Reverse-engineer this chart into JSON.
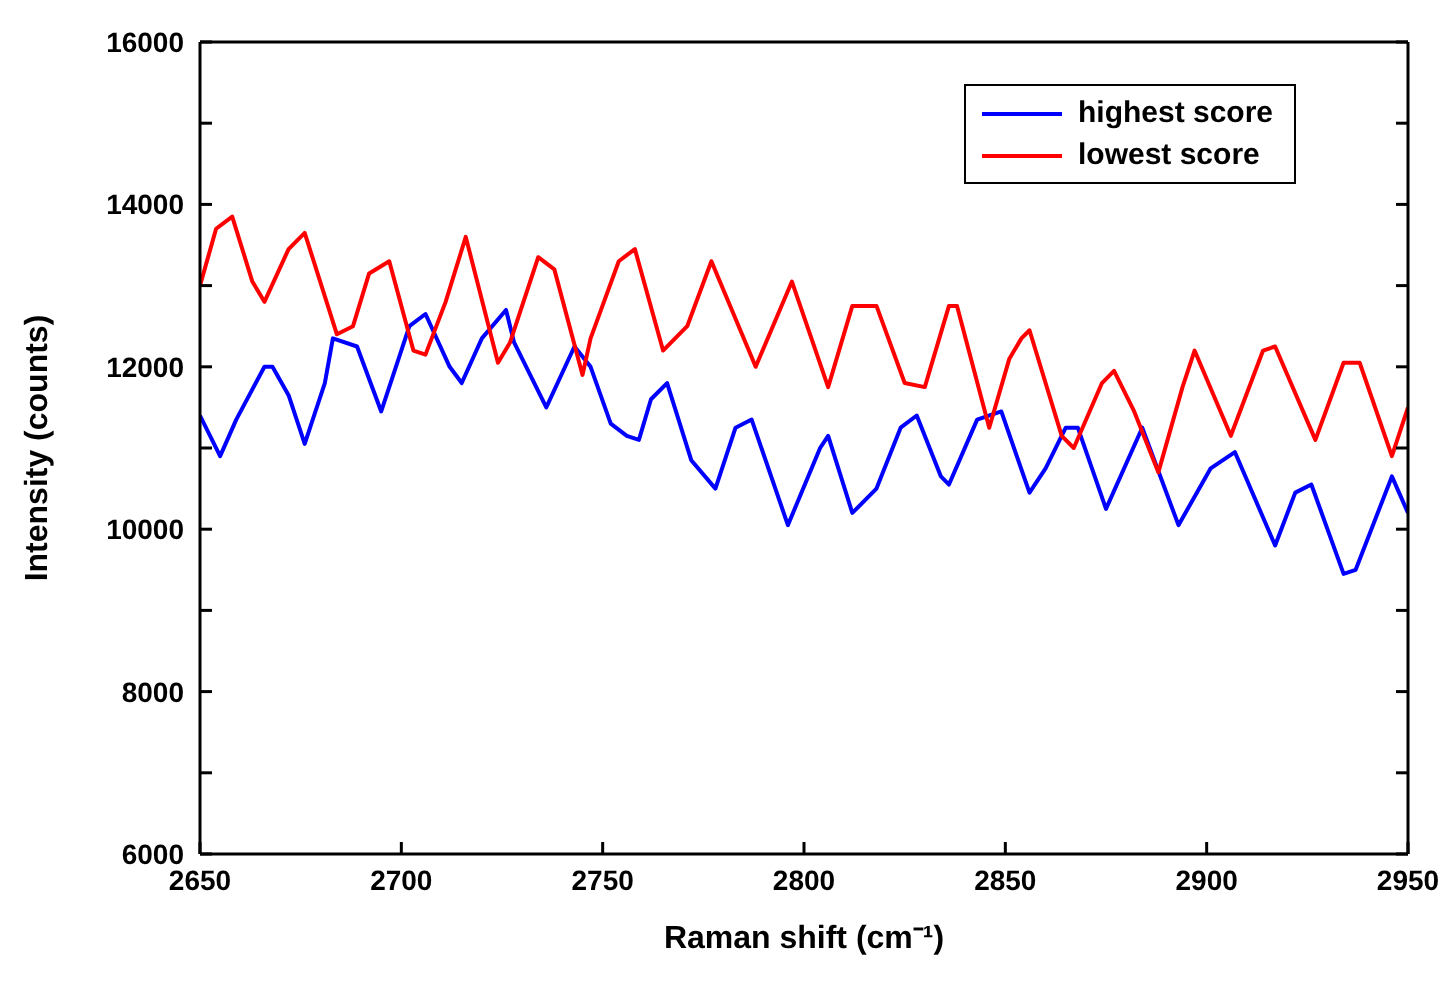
{
  "chart_data": {
    "type": "line",
    "xlabel": "Raman shift (cm⁻¹)",
    "ylabel": "Intensity (counts)",
    "xlim": [
      2650,
      2950
    ],
    "xticks": [
      2650,
      2700,
      2750,
      2800,
      2850,
      2900,
      2950
    ],
    "ylim": [
      6000,
      16000
    ],
    "yticks": [
      6000,
      {
        "value": 7000,
        "label": null
      },
      8000,
      {
        "value": 9000,
        "label": null
      },
      10000,
      {
        "value": 11000,
        "label": null
      },
      12000,
      {
        "value": 13000,
        "label": null
      },
      14000,
      {
        "value": 15000,
        "label": null
      },
      16000
    ],
    "legend": "top right",
    "marker": "none",
    "line_style": "solid",
    "series": [
      {
        "name": "highest score",
        "color": "#0000ff",
        "x": [
          2650,
          2655,
          2659,
          2666,
          2668,
          2672,
          2676,
          2681,
          2683,
          2689,
          2695,
          2702,
          2706,
          2712,
          2715,
          2720,
          2726,
          2728,
          2736,
          2743,
          2747,
          2752,
          2756,
          2759,
          2762,
          2766,
          2772,
          2778,
          2783,
          2787,
          2796,
          2804,
          2806,
          2812,
          2818,
          2824,
          2828,
          2834,
          2836,
          2843,
          2849,
          2856,
          2860,
          2865,
          2868,
          2875,
          2884,
          2893,
          2901,
          2907,
          2917,
          2922,
          2926,
          2934,
          2937,
          2946,
          2950
        ],
        "values": [
          11400,
          10900,
          11350,
          12000,
          12000,
          11650,
          11050,
          11800,
          12350,
          12250,
          11450,
          12500,
          12650,
          12000,
          11800,
          12350,
          12700,
          12300,
          11500,
          12250,
          12000,
          11300,
          11150,
          11100,
          11600,
          11800,
          10850,
          10500,
          11250,
          11350,
          10050,
          11000,
          11150,
          10200,
          10500,
          11250,
          11400,
          10650,
          10550,
          11350,
          11450,
          10450,
          10750,
          11250,
          11250,
          10250,
          11250,
          10050,
          10750,
          10950,
          9800,
          10450,
          10550,
          9450,
          9500,
          10650,
          10200
        ]
      },
      {
        "name": "lowest score",
        "color": "#ff0000",
        "x": [
          2650,
          2654,
          2658,
          2663,
          2666,
          2672,
          2676,
          2684,
          2688,
          2692,
          2697,
          2703,
          2706,
          2711,
          2716,
          2724,
          2727,
          2734,
          2738,
          2745,
          2747,
          2754,
          2758,
          2765,
          2771,
          2777,
          2788,
          2797,
          2806,
          2812,
          2818,
          2825,
          2830,
          2836,
          2838,
          2846,
          2851,
          2854,
          2856,
          2864,
          2867,
          2874,
          2877,
          2882,
          2888,
          2894,
          2897,
          2906,
          2914,
          2917,
          2927,
          2934,
          2938,
          2946,
          2950
        ],
        "values": [
          13000,
          13700,
          13850,
          13050,
          12800,
          13450,
          13650,
          12400,
          12500,
          13150,
          13300,
          12200,
          12150,
          12800,
          13600,
          12050,
          12300,
          13350,
          13200,
          11900,
          12350,
          13300,
          13450,
          12200,
          12500,
          13300,
          12000,
          13050,
          11750,
          12750,
          12750,
          11800,
          11750,
          12750,
          12750,
          11250,
          12100,
          12350,
          12450,
          11150,
          11000,
          11800,
          11950,
          11450,
          10700,
          11750,
          12200,
          11150,
          12200,
          12250,
          11100,
          12050,
          12050,
          10900,
          11500
        ]
      }
    ]
  }
}
